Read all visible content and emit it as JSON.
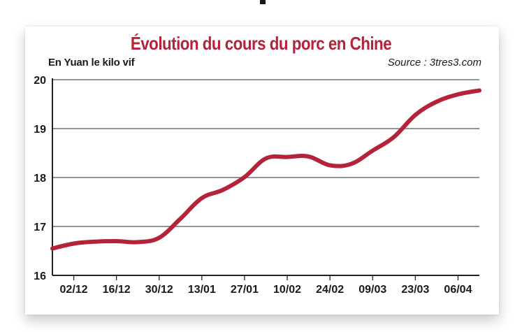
{
  "chart_data": {
    "type": "line",
    "title": "Évolution du cours du porc en Chine",
    "ylabel": "En Yuan le kilo vif",
    "source": "Source : 3tres3.com",
    "ylim": [
      16,
      20
    ],
    "yticks": [
      "16",
      "17",
      "18",
      "19",
      "20"
    ],
    "grid": true,
    "xtick_labels": [
      "02/12",
      "16/12",
      "30/12",
      "13/01",
      "27/01",
      "10/02",
      "24/02",
      "09/03",
      "23/03",
      "06/04"
    ],
    "series": [
      {
        "color": "#b42339",
        "x": [
          "26/11",
          "02/12",
          "09/12",
          "16/12",
          "23/12",
          "30/12",
          "06/01",
          "13/01",
          "20/01",
          "27/01",
          "03/02",
          "10/02",
          "17/02",
          "24/02",
          "03/03",
          "09/03",
          "16/03",
          "23/03",
          "30/03",
          "06/04",
          "13/04"
        ],
        "values": [
          16.55,
          16.65,
          16.69,
          16.7,
          16.68,
          16.77,
          17.16,
          17.58,
          17.75,
          18.01,
          18.39,
          18.42,
          18.43,
          18.25,
          18.28,
          18.55,
          18.83,
          19.28,
          19.55,
          19.7,
          19.78
        ]
      }
    ]
  }
}
